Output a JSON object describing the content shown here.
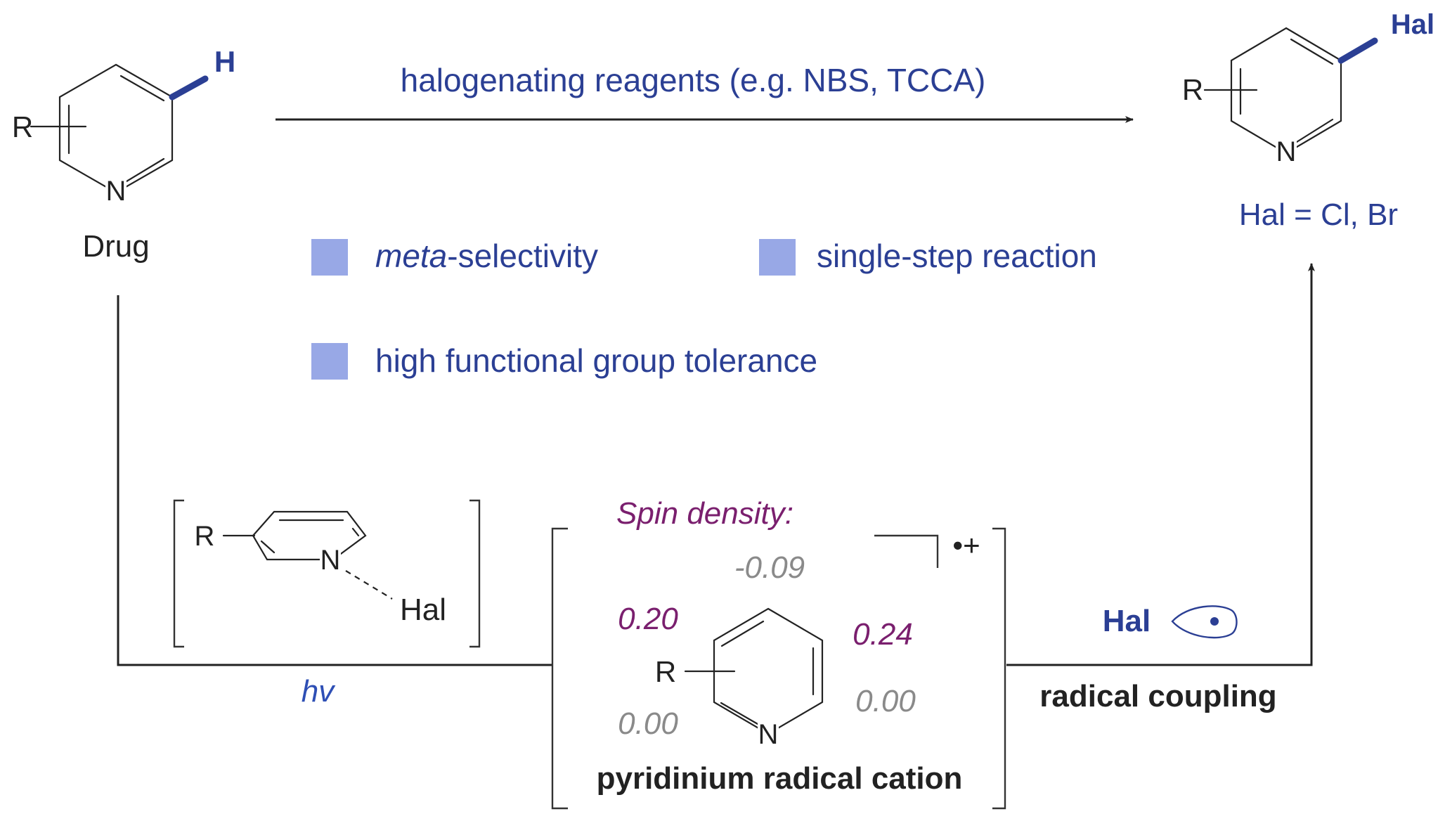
{
  "colors": {
    "text_blue": "#2b3f94",
    "hv_blue": "#2e4fb5",
    "spin_purple": "#7a1f6e",
    "spin_grey": "#8a8a8a",
    "bullet_square": "#98a8e6",
    "black": "#222222"
  },
  "reactant": {
    "substituent": "R",
    "ring_atom": "N",
    "hydrogen": "H",
    "label": "Drug"
  },
  "top_arrow": {
    "label": "halogenating reagents (e.g. NBS, TCCA)"
  },
  "product": {
    "substituent": "R",
    "ring_atom": "N",
    "halogen": "Hal",
    "definition": "Hal = Cl, Br"
  },
  "features": [
    {
      "italic_prefix": "meta",
      "text": "-selectivity",
      "icon": "square-bullet-icon"
    },
    {
      "italic_prefix": "",
      "text": "single-step reaction",
      "icon": "square-bullet-icon"
    },
    {
      "italic_prefix": "",
      "text": "high functional group tolerance",
      "icon": "square-bullet-icon"
    }
  ],
  "complex": {
    "substituent": "R",
    "ring_atom": "N",
    "halogen": "Hal"
  },
  "light_label": "hv",
  "intermediate": {
    "spin_title": "Spin density:",
    "charge": "•+",
    "substituent": "R",
    "ring_atom": "N",
    "spin_values": {
      "top": "-0.09",
      "upper_left": "0.20",
      "upper_right": "0.24",
      "lower_left": "0.00",
      "lower_right": "0.00"
    },
    "label": "pyridinium radical cation"
  },
  "coupling": {
    "halogen": "Hal",
    "icon": "halogen-radical-orbital-icon",
    "label": "radical coupling"
  }
}
